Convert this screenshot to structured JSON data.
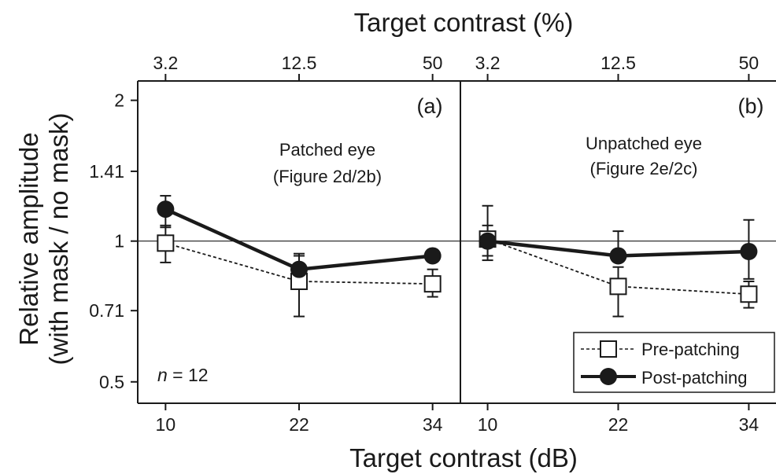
{
  "chart_data": {
    "type": "line",
    "top_axis_title": "Target contrast (%)",
    "bottom_axis_title": "Target contrast (dB)",
    "y_axis_title_line1": "Relative amplitude",
    "y_axis_title_line2": "(with mask / no mask)",
    "y_scale": "log2",
    "ylim": [
      0.45,
      2.2
    ],
    "yticks": [
      {
        "value": 0.5,
        "label": "0.5"
      },
      {
        "value": 0.71,
        "label": "0.71"
      },
      {
        "value": 1,
        "label": "1"
      },
      {
        "value": 1.41,
        "label": "1.41"
      },
      {
        "value": 2,
        "label": "2"
      }
    ],
    "xlim": [
      7.5,
      36.5
    ],
    "xticks_bottom": [
      {
        "value": 10,
        "label": "10"
      },
      {
        "value": 22,
        "label": "22"
      },
      {
        "value": 34,
        "label": "34"
      }
    ],
    "xticks_top": [
      {
        "value": 10,
        "label": "3.2"
      },
      {
        "value": 22,
        "label": "12.5"
      },
      {
        "value": 34,
        "label": "50"
      }
    ],
    "reference_line": 1,
    "legend": {
      "placement": "bottom-right of panel (b)",
      "entries": [
        {
          "label": "Pre-patching",
          "series": "pre"
        },
        {
          "label": "Post-patching",
          "series": "post"
        }
      ]
    },
    "panels": [
      {
        "id": "a",
        "label": "(a)",
        "annotation_line1": "Patched eye",
        "annotation_line2": "(Figure 2d/2b)",
        "n_prefix": "n",
        "n_suffix": " = 12",
        "series": [
          {
            "key": "pre",
            "x": [
              10,
              22,
              34
            ],
            "y": [
              0.99,
              0.82,
              0.81
            ],
            "err_low": [
              0.9,
              0.69,
              0.76
            ],
            "err_high": [
              1.08,
              0.93,
              0.87
            ]
          },
          {
            "key": "post",
            "x": [
              10,
              22,
              34
            ],
            "y": [
              1.17,
              0.87,
              0.93
            ],
            "err_low": [
              1.07,
              0.8,
              0.93
            ],
            "err_high": [
              1.25,
              0.94,
              0.93
            ]
          }
        ]
      },
      {
        "id": "b",
        "label": "(b)",
        "annotation_line1": "Unpatched eye",
        "annotation_line2": "(Figure 2e/2c)",
        "series": [
          {
            "key": "pre",
            "x": [
              10,
              22,
              34
            ],
            "y": [
              1.01,
              0.8,
              0.77
            ],
            "err_low": [
              0.93,
              0.69,
              0.72
            ],
            "err_high": [
              1.08,
              0.88,
              0.82
            ]
          },
          {
            "key": "post",
            "x": [
              10,
              22,
              34
            ],
            "y": [
              1.0,
              0.93,
              0.95
            ],
            "err_low": [
              0.91,
              0.93,
              0.83
            ],
            "err_high": [
              1.19,
              1.05,
              1.11
            ]
          }
        ]
      }
    ]
  }
}
